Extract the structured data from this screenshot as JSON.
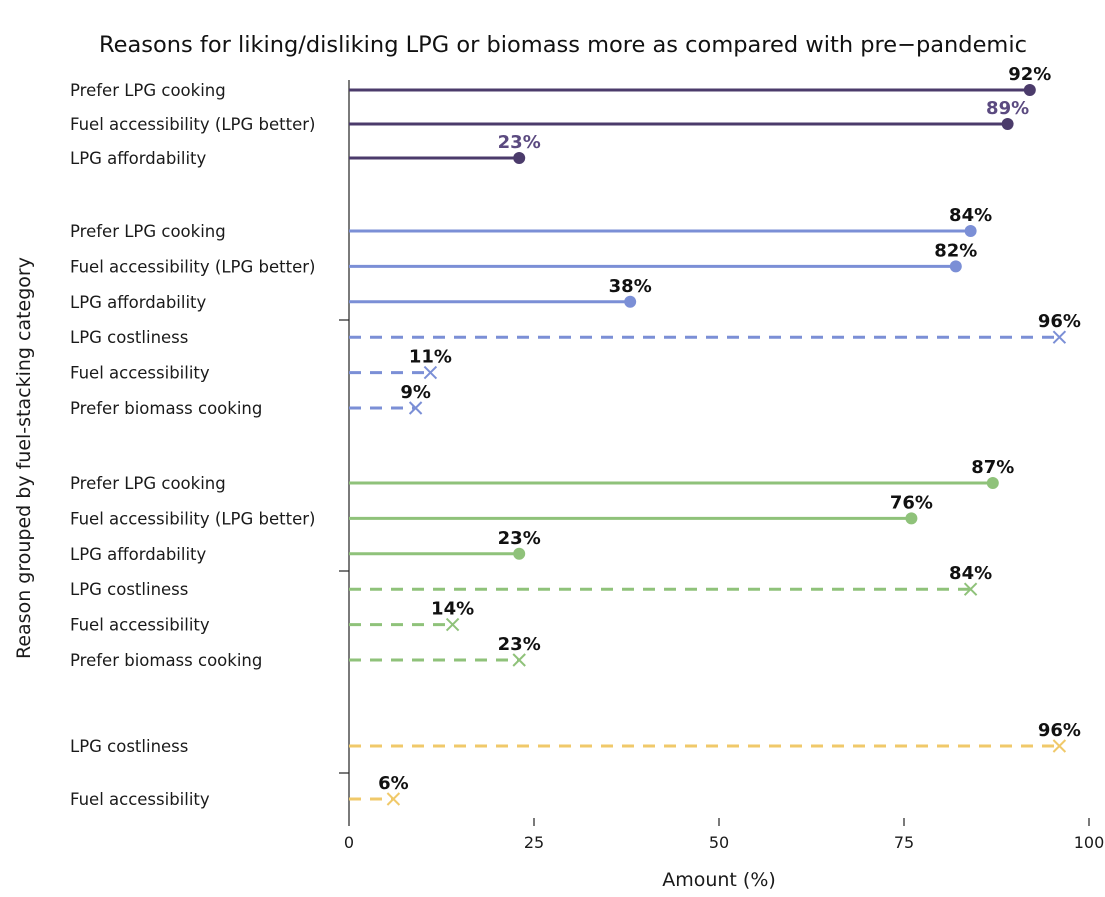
{
  "chart_data": {
    "type": "lollipop",
    "title": "Reasons for liking/disliking LPG or biomass more as compared with pre−pandemic",
    "xlabel": "Amount (%)",
    "ylabel": "Reason grouped by fuel-stacking category",
    "xlim": [
      0,
      100
    ],
    "x_ticks": [
      "0",
      "25",
      "50",
      "75",
      "100"
    ],
    "legend": "none",
    "groups": [
      {
        "color": "#4b3b6b",
        "rows": [
          {
            "label": "Prefer LPG cooking",
            "value": 92,
            "value_label": "92%",
            "marker": "dot",
            "line": "solid",
            "label_color": "#111111"
          },
          {
            "label": "Fuel accessibility (LPG better)",
            "value": 89,
            "value_label": "89%",
            "marker": "dot",
            "line": "solid",
            "label_color": "#5b4a80"
          },
          {
            "label": "LPG affordability",
            "value": 23,
            "value_label": "23%",
            "marker": "dot",
            "line": "solid",
            "label_color": "#5b4a80"
          }
        ]
      },
      {
        "color": "#7b8fd6",
        "rows": [
          {
            "label": "Prefer LPG cooking",
            "value": 84,
            "value_label": "84%",
            "marker": "dot",
            "line": "solid",
            "label_color": "#111111"
          },
          {
            "label": "Fuel accessibility (LPG better)",
            "value": 82,
            "value_label": "82%",
            "marker": "dot",
            "line": "solid",
            "label_color": "#111111"
          },
          {
            "label": "LPG affordability",
            "value": 38,
            "value_label": "38%",
            "marker": "dot",
            "line": "solid",
            "label_color": "#111111"
          },
          {
            "label": "LPG costliness",
            "value": 96,
            "value_label": "96%",
            "marker": "cross",
            "line": "dashed",
            "label_color": "#111111"
          },
          {
            "label": "Fuel accessibility",
            "value": 11,
            "value_label": "11%",
            "marker": "cross",
            "line": "dashed",
            "label_color": "#111111"
          },
          {
            "label": "Prefer biomass cooking",
            "value": 9,
            "value_label": "9%",
            "marker": "cross",
            "line": "dashed",
            "label_color": "#111111"
          }
        ]
      },
      {
        "color": "#8fc27a",
        "rows": [
          {
            "label": "Prefer LPG cooking",
            "value": 87,
            "value_label": "87%",
            "marker": "dot",
            "line": "solid",
            "label_color": "#111111"
          },
          {
            "label": "Fuel accessibility (LPG better)",
            "value": 76,
            "value_label": "76%",
            "marker": "dot",
            "line": "solid",
            "label_color": "#111111"
          },
          {
            "label": "LPG affordability",
            "value": 23,
            "value_label": "23%",
            "marker": "dot",
            "line": "solid",
            "label_color": "#111111"
          },
          {
            "label": "LPG costliness",
            "value": 84,
            "value_label": "84%",
            "marker": "cross",
            "line": "dashed",
            "label_color": "#111111"
          },
          {
            "label": "Fuel accessibility",
            "value": 14,
            "value_label": "14%",
            "marker": "cross",
            "line": "dashed",
            "label_color": "#111111"
          },
          {
            "label": "Prefer biomass cooking",
            "value": 23,
            "value_label": "23%",
            "marker": "cross",
            "line": "dashed",
            "label_color": "#111111"
          }
        ]
      },
      {
        "color": "#f0c96a",
        "rows": [
          {
            "label": "LPG costliness",
            "value": 96,
            "value_label": "96%",
            "marker": "cross",
            "line": "dashed",
            "label_color": "#111111"
          },
          {
            "label": "Fuel accessibility",
            "value": 6,
            "value_label": "6%",
            "marker": "cross",
            "line": "dashed",
            "label_color": "#111111"
          }
        ]
      }
    ]
  }
}
